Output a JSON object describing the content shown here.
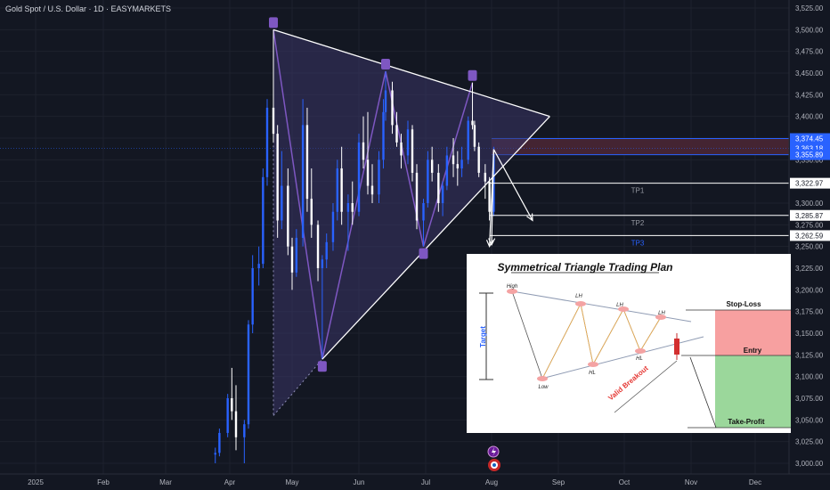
{
  "title": "Gold Spot / U.S. Dollar · 1D · EASYMARKETS",
  "colors": {
    "background": "#131722",
    "up": "#2962ff",
    "down": "#ffffff",
    "triangle_fill": "#3b3566",
    "zigzag": "#7e57c2",
    "handle": "#7e57c2",
    "sell_zone": "#4a2634",
    "blue_line": "#2962ff"
  },
  "chart_data": {
    "type": "candlestick",
    "instrument": "Gold Spot / U.S. Dollar",
    "timeframe": "1D",
    "broker": "EASYMARKETS",
    "x_labels": [
      "2025",
      "Feb",
      "Mar",
      "Apr",
      "May",
      "Jun",
      "Jul",
      "Aug",
      "Sep",
      "Oct",
      "Nov",
      "Dec"
    ],
    "y_ticks": [
      3525,
      3500,
      3475,
      3450,
      3425,
      3400,
      3375,
      3350,
      3325,
      3300,
      3275,
      3250,
      3225,
      3200,
      3175,
      3150,
      3125,
      3100,
      3075,
      3050,
      3025,
      3000
    ],
    "ylim": [
      2996,
      3530
    ],
    "price_tags": [
      {
        "text": "3,374.45",
        "value": 3374.45,
        "style": "blue"
      },
      {
        "text": "3,363.18",
        "value": 3363.18,
        "style": "blue"
      },
      {
        "text": "3,355.89",
        "value": 3355.89,
        "style": "blue"
      },
      {
        "text": "3,322.97",
        "value": 3322.97,
        "style": "white"
      },
      {
        "text": "3,285.87",
        "value": 3285.87,
        "style": "white"
      },
      {
        "text": "3,262.59",
        "value": 3262.59,
        "style": "white"
      }
    ],
    "levels": [
      {
        "label": "TP1",
        "value": 3322.97
      },
      {
        "label": "TP2",
        "value": 3285.87
      },
      {
        "label": "TP3",
        "value": 3262.59
      }
    ],
    "sell_zone": [
      3355.89,
      3374.45
    ],
    "triangle": {
      "apex": [
        "2025-08-28",
        3400
      ],
      "upper_start": [
        "2025-04-22",
        3500
      ],
      "lower_start": [
        "2025-05-15",
        3120
      ]
    },
    "zigzag_points": [
      [
        "2025-04-22",
        3500
      ],
      [
        "2025-05-15",
        3120
      ],
      [
        "2025-06-13",
        3452
      ],
      [
        "2025-06-30",
        3250
      ],
      [
        "2025-07-23",
        3439
      ]
    ],
    "candles": [
      {
        "date": "2025-03-25",
        "o": 3010,
        "h": 3018,
        "l": 3000,
        "c": 3012
      },
      {
        "date": "2025-03-27",
        "o": 3012,
        "h": 3040,
        "l": 3008,
        "c": 3035
      },
      {
        "date": "2025-03-31",
        "o": 3035,
        "h": 3080,
        "l": 3030,
        "c": 3075
      },
      {
        "date": "2025-04-02",
        "o": 3075,
        "h": 3110,
        "l": 3050,
        "c": 3060
      },
      {
        "date": "2025-04-04",
        "o": 3060,
        "h": 3090,
        "l": 3015,
        "c": 3030
      },
      {
        "date": "2025-04-08",
        "o": 3030,
        "h": 3050,
        "l": 3000,
        "c": 3045
      },
      {
        "date": "2025-04-10",
        "o": 3045,
        "h": 3165,
        "l": 3040,
        "c": 3160
      },
      {
        "date": "2025-04-12",
        "o": 3160,
        "h": 3240,
        "l": 3150,
        "c": 3225
      },
      {
        "date": "2025-04-15",
        "o": 3225,
        "h": 3250,
        "l": 3205,
        "c": 3230
      },
      {
        "date": "2025-04-17",
        "o": 3230,
        "h": 3340,
        "l": 3225,
        "c": 3330
      },
      {
        "date": "2025-04-19",
        "o": 3330,
        "h": 3420,
        "l": 3320,
        "c": 3410
      },
      {
        "date": "2025-04-22",
        "o": 3410,
        "h": 3500,
        "l": 3370,
        "c": 3380
      },
      {
        "date": "2025-04-24",
        "o": 3380,
        "h": 3390,
        "l": 3260,
        "c": 3280
      },
      {
        "date": "2025-04-26",
        "o": 3280,
        "h": 3360,
        "l": 3270,
        "c": 3320
      },
      {
        "date": "2025-04-29",
        "o": 3320,
        "h": 3340,
        "l": 3240,
        "c": 3250
      },
      {
        "date": "2025-05-01",
        "o": 3250,
        "h": 3260,
        "l": 3200,
        "c": 3220
      },
      {
        "date": "2025-05-03",
        "o": 3220,
        "h": 3270,
        "l": 3215,
        "c": 3260
      },
      {
        "date": "2025-05-06",
        "o": 3260,
        "h": 3420,
        "l": 3250,
        "c": 3390
      },
      {
        "date": "2025-05-08",
        "o": 3390,
        "h": 3410,
        "l": 3290,
        "c": 3305
      },
      {
        "date": "2025-05-10",
        "o": 3305,
        "h": 3340,
        "l": 3260,
        "c": 3275
      },
      {
        "date": "2025-05-13",
        "o": 3275,
        "h": 3280,
        "l": 3210,
        "c": 3225
      },
      {
        "date": "2025-05-15",
        "o": 3225,
        "h": 3240,
        "l": 3120,
        "c": 3235
      },
      {
        "date": "2025-05-17",
        "o": 3235,
        "h": 3265,
        "l": 3225,
        "c": 3255
      },
      {
        "date": "2025-05-20",
        "o": 3255,
        "h": 3300,
        "l": 3245,
        "c": 3290
      },
      {
        "date": "2025-05-22",
        "o": 3290,
        "h": 3350,
        "l": 3280,
        "c": 3340
      },
      {
        "date": "2025-05-24",
        "o": 3340,
        "h": 3365,
        "l": 3275,
        "c": 3290
      },
      {
        "date": "2025-05-27",
        "o": 3290,
        "h": 3310,
        "l": 3245,
        "c": 3300
      },
      {
        "date": "2025-05-29",
        "o": 3300,
        "h": 3325,
        "l": 3275,
        "c": 3290
      },
      {
        "date": "2025-06-01",
        "o": 3290,
        "h": 3380,
        "l": 3285,
        "c": 3370
      },
      {
        "date": "2025-06-03",
        "o": 3370,
        "h": 3400,
        "l": 3340,
        "c": 3350
      },
      {
        "date": "2025-06-05",
        "o": 3350,
        "h": 3405,
        "l": 3310,
        "c": 3320
      },
      {
        "date": "2025-06-07",
        "o": 3320,
        "h": 3345,
        "l": 3300,
        "c": 3310
      },
      {
        "date": "2025-06-10",
        "o": 3310,
        "h": 3360,
        "l": 3300,
        "c": 3350
      },
      {
        "date": "2025-06-12",
        "o": 3350,
        "h": 3420,
        "l": 3340,
        "c": 3405
      },
      {
        "date": "2025-06-13",
        "o": 3405,
        "h": 3452,
        "l": 3395,
        "c": 3430
      },
      {
        "date": "2025-06-16",
        "o": 3430,
        "h": 3440,
        "l": 3380,
        "c": 3390
      },
      {
        "date": "2025-06-18",
        "o": 3390,
        "h": 3405,
        "l": 3365,
        "c": 3370
      },
      {
        "date": "2025-06-20",
        "o": 3370,
        "h": 3380,
        "l": 3340,
        "c": 3355
      },
      {
        "date": "2025-06-23",
        "o": 3355,
        "h": 3395,
        "l": 3345,
        "c": 3385
      },
      {
        "date": "2025-06-25",
        "o": 3385,
        "h": 3390,
        "l": 3325,
        "c": 3335
      },
      {
        "date": "2025-06-27",
        "o": 3335,
        "h": 3345,
        "l": 3270,
        "c": 3280
      },
      {
        "date": "2025-06-30",
        "o": 3280,
        "h": 3305,
        "l": 3250,
        "c": 3300
      },
      {
        "date": "2025-07-02",
        "o": 3300,
        "h": 3360,
        "l": 3295,
        "c": 3350
      },
      {
        "date": "2025-07-04",
        "o": 3350,
        "h": 3365,
        "l": 3325,
        "c": 3335
      },
      {
        "date": "2025-07-07",
        "o": 3335,
        "h": 3345,
        "l": 3290,
        "c": 3300
      },
      {
        "date": "2025-07-09",
        "o": 3300,
        "h": 3325,
        "l": 3285,
        "c": 3320
      },
      {
        "date": "2025-07-11",
        "o": 3320,
        "h": 3365,
        "l": 3315,
        "c": 3355
      },
      {
        "date": "2025-07-14",
        "o": 3355,
        "h": 3375,
        "l": 3330,
        "c": 3345
      },
      {
        "date": "2025-07-16",
        "o": 3345,
        "h": 3360,
        "l": 3320,
        "c": 3340
      },
      {
        "date": "2025-07-18",
        "o": 3340,
        "h": 3365,
        "l": 3330,
        "c": 3350
      },
      {
        "date": "2025-07-21",
        "o": 3350,
        "h": 3400,
        "l": 3345,
        "c": 3395
      },
      {
        "date": "2025-07-23",
        "o": 3395,
        "h": 3439,
        "l": 3385,
        "c": 3390
      },
      {
        "date": "2025-07-24",
        "o": 3390,
        "h": 3395,
        "l": 3360,
        "c": 3365
      },
      {
        "date": "2025-07-26",
        "o": 3365,
        "h": 3370,
        "l": 3330,
        "c": 3335
      },
      {
        "date": "2025-07-29",
        "o": 3335,
        "h": 3345,
        "l": 3305,
        "c": 3325
      },
      {
        "date": "2025-07-31",
        "o": 3325,
        "h": 3330,
        "l": 3280,
        "c": 3290
      },
      {
        "date": "2025-08-02",
        "o": 3290,
        "h": 3365,
        "l": 3285,
        "c": 3355
      }
    ]
  },
  "inset": {
    "title": "Symmetrical Triangle Trading Plan",
    "high": "High",
    "low": "Low",
    "lh1": "LH",
    "lh2": "LH",
    "lh3": "LH",
    "hl1": "HL",
    "hl2": "HL",
    "target": "Target",
    "valid_breakout": "Valid Breakout",
    "stop_loss": "Stop-Loss",
    "entry": "Entry",
    "take_profit": "Take-Profit"
  }
}
